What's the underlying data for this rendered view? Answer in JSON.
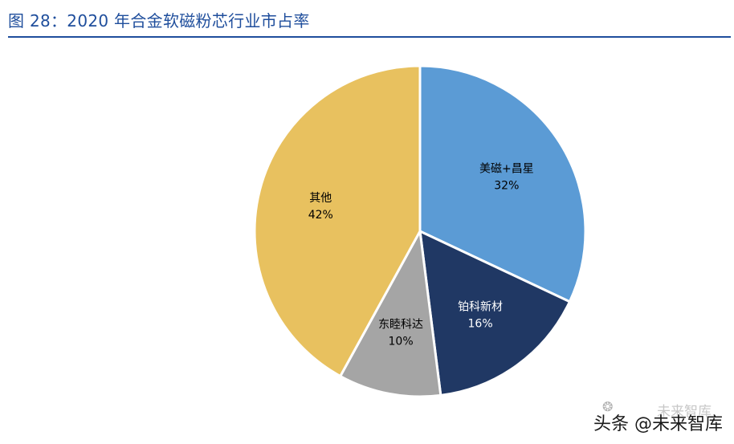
{
  "figure": {
    "title": "图 28：2020 年合金软磁粉芯行业市占率"
  },
  "chart_data": {
    "type": "pie",
    "slices": [
      {
        "label": "美磁+昌星",
        "value": 32,
        "value_label": "32%",
        "color": "#5b9bd5",
        "text_color": "#000000"
      },
      {
        "label": "铂科新材",
        "value": 16,
        "value_label": "16%",
        "color": "#203864",
        "text_color": "#ffffff"
      },
      {
        "label": "东睦科达",
        "value": 10,
        "value_label": "10%",
        "color": "#a5a5a5",
        "text_color": "#000000"
      },
      {
        "label": "其他",
        "value": 42,
        "value_label": "42%",
        "color": "#e8c15f",
        "text_color": "#000000"
      }
    ],
    "start_angle": "12 o'clock",
    "direction": "clockwise",
    "legend": "none"
  },
  "watermark": {
    "faint": "未来智库",
    "main": "头条 @未来智库",
    "icon": "wechat-icon"
  }
}
